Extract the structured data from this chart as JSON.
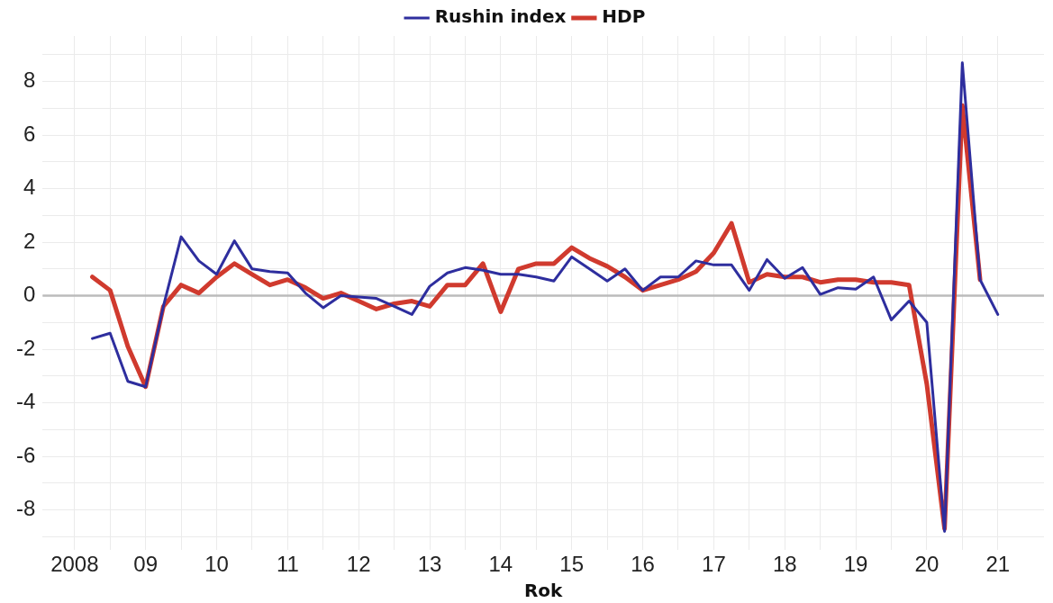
{
  "chart_data": {
    "type": "line",
    "xlabel": "Rok",
    "legend": "top",
    "grid": true,
    "marker": "none",
    "line_style": "solid",
    "xlim": [
      2007.55,
      2021.65
    ],
    "xticks": [
      {
        "value": 2008,
        "label": "2008"
      },
      {
        "value": 2008.5,
        "label": null
      },
      {
        "value": 2009,
        "label": "09"
      },
      {
        "value": 2009.5,
        "label": null
      },
      {
        "value": 2010,
        "label": "10"
      },
      {
        "value": 2010.5,
        "label": null
      },
      {
        "value": 2011,
        "label": "11"
      },
      {
        "value": 2011.5,
        "label": null
      },
      {
        "value": 2012,
        "label": "12"
      },
      {
        "value": 2012.5,
        "label": null
      },
      {
        "value": 2013,
        "label": "13"
      },
      {
        "value": 2013.5,
        "label": null
      },
      {
        "value": 2014,
        "label": "14"
      },
      {
        "value": 2014.5,
        "label": null
      },
      {
        "value": 2015,
        "label": "15"
      },
      {
        "value": 2015.5,
        "label": null
      },
      {
        "value": 2016,
        "label": "16"
      },
      {
        "value": 2016.5,
        "label": null
      },
      {
        "value": 2017,
        "label": "17"
      },
      {
        "value": 2017.5,
        "label": null
      },
      {
        "value": 2018,
        "label": "18"
      },
      {
        "value": 2018.5,
        "label": null
      },
      {
        "value": 2019,
        "label": "19"
      },
      {
        "value": 2019.5,
        "label": null
      },
      {
        "value": 2020,
        "label": "20"
      },
      {
        "value": 2020.5,
        "label": null
      },
      {
        "value": 2021,
        "label": "21"
      }
    ],
    "ylim": [
      -9.5,
      9.7
    ],
    "yticks": [
      {
        "value": -9,
        "label": null
      },
      -8,
      {
        "value": -7,
        "label": null
      },
      -6,
      {
        "value": -5,
        "label": null
      },
      -4,
      {
        "value": -3,
        "label": null
      },
      -2,
      {
        "value": -1,
        "label": null
      },
      0,
      {
        "value": 1,
        "label": null
      },
      2,
      {
        "value": 3,
        "label": null
      },
      4,
      {
        "value": 5,
        "label": null
      },
      6,
      {
        "value": 7,
        "label": null
      },
      8,
      {
        "value": 9,
        "label": null
      }
    ],
    "ref_lines": [
      {
        "axis": "y",
        "value": 0,
        "color": "#bbbbbb"
      }
    ],
    "series": [
      {
        "name": "Rushin index",
        "color": "#2e2e9e",
        "x": [
          2008.25,
          2008.5,
          2008.75,
          2009,
          2009.25,
          2009.5,
          2009.75,
          2010,
          2010.25,
          2010.5,
          2010.75,
          2011,
          2011.25,
          2011.5,
          2011.75,
          2012,
          2012.25,
          2012.5,
          2012.75,
          2013,
          2013.25,
          2013.5,
          2013.75,
          2014,
          2014.25,
          2014.5,
          2014.75,
          2015,
          2015.25,
          2015.5,
          2015.75,
          2016,
          2016.25,
          2016.5,
          2016.75,
          2017,
          2017.25,
          2017.5,
          2017.75,
          2018,
          2018.25,
          2018.5,
          2018.75,
          2019,
          2019.25,
          2019.5,
          2019.75,
          2020,
          2020.25,
          2020.5,
          2020.75,
          2021
        ],
        "values": [
          -1.6,
          -1.4,
          -3.2,
          -3.4,
          -0.4,
          2.2,
          1.3,
          0.8,
          2.05,
          1.0,
          0.9,
          0.85,
          0.1,
          -0.45,
          0.0,
          -0.05,
          -0.1,
          -0.4,
          -0.7,
          0.35,
          0.85,
          1.05,
          0.95,
          0.8,
          0.8,
          0.7,
          0.55,
          1.45,
          1.0,
          0.55,
          1.0,
          0.2,
          0.7,
          0.7,
          1.3,
          1.15,
          1.15,
          0.2,
          1.35,
          0.65,
          1.05,
          0.05,
          0.3,
          0.25,
          0.7,
          -0.9,
          -0.2,
          -1.0,
          -8.8,
          8.7,
          0.6,
          -0.7
        ]
      },
      {
        "name": "HDP",
        "color": "#d03a2e",
        "x": [
          2008.25,
          2008.5,
          2008.75,
          2009,
          2009.25,
          2009.5,
          2009.75,
          2010,
          2010.25,
          2010.5,
          2010.75,
          2011,
          2011.25,
          2011.5,
          2011.75,
          2012,
          2012.25,
          2012.5,
          2012.75,
          2013,
          2013.25,
          2013.5,
          2013.75,
          2014,
          2014.25,
          2014.5,
          2014.75,
          2015,
          2015.25,
          2015.5,
          2015.75,
          2016,
          2016.25,
          2016.5,
          2016.75,
          2017,
          2017.25,
          2017.5,
          2017.75,
          2018,
          2018.25,
          2018.5,
          2018.75,
          2019,
          2019.25,
          2019.5,
          2019.75,
          2020,
          2020.25,
          2020.5,
          2020.75
        ],
        "values": [
          0.7,
          0.2,
          -1.9,
          -3.4,
          -0.4,
          0.4,
          0.1,
          0.7,
          1.2,
          0.8,
          0.4,
          0.6,
          0.3,
          -0.1,
          0.1,
          -0.2,
          -0.5,
          -0.3,
          -0.2,
          -0.4,
          0.4,
          0.4,
          1.2,
          -0.6,
          1.0,
          1.2,
          1.2,
          1.8,
          1.4,
          1.1,
          0.7,
          0.2,
          0.4,
          0.6,
          0.9,
          1.6,
          2.7,
          0.5,
          0.8,
          0.7,
          0.7,
          0.5,
          0.6,
          0.6,
          0.5,
          0.5,
          0.4,
          -3.3,
          -8.7,
          7.1,
          0.6
        ]
      }
    ]
  }
}
